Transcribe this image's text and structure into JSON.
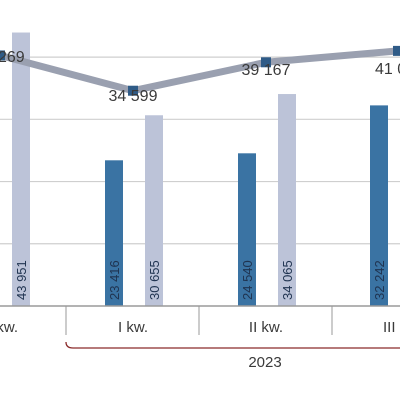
{
  "chart_data": {
    "type": "bar",
    "title": "",
    "xlabel": "",
    "ylabel": "",
    "ylim": [
      0,
      45000
    ],
    "grid": true,
    "categories": [
      "kw.",
      "I kw.",
      "II kw.",
      "III k"
    ],
    "year_group": {
      "label": "2023",
      "from_category": 1
    },
    "series": [
      {
        "kind": "bar",
        "color": "#3a73a3",
        "values": [
          null,
          23416,
          24540,
          32242
        ],
        "labels": [
          "",
          "23 416",
          "24 540",
          "32 242"
        ]
      },
      {
        "kind": "bar",
        "color": "#bcc3d8",
        "values": [
          43951,
          30655,
          34065,
          null
        ],
        "labels": [
          "43 951",
          "30 655",
          "34 065",
          ""
        ]
      },
      {
        "kind": "line",
        "line_color": "#9aa0b0",
        "marker_color": "#2f5b87",
        "values": [
          40269,
          34599,
          39167,
          41000
        ],
        "labels": [
          "269",
          "34 599",
          "39 167",
          "41 0"
        ]
      }
    ],
    "colors": {
      "grid": "#cfcfcf",
      "axis": "#9a9a9a",
      "bracket": "#8a2a2a"
    }
  }
}
